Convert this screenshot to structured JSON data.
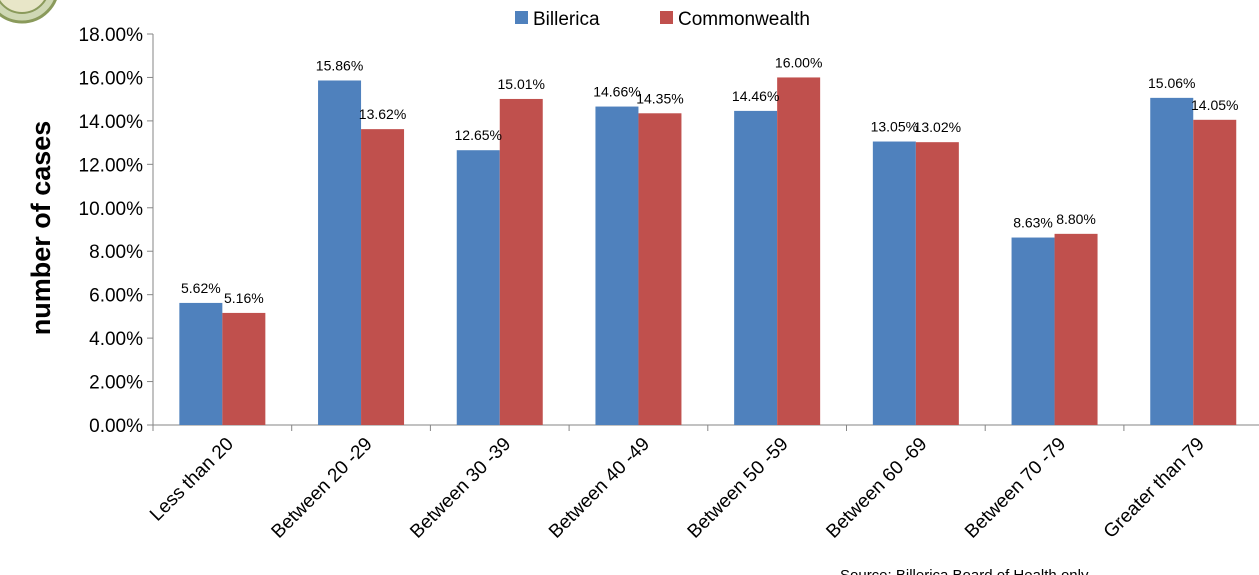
{
  "chart_data": {
    "type": "bar",
    "ylabel": "number of cases",
    "xlabel": "",
    "ylim": [
      0,
      18
    ],
    "y_ticks": [
      "0.00%",
      "2.00%",
      "4.00%",
      "6.00%",
      "8.00%",
      "10.00%",
      "12.00%",
      "14.00%",
      "16.00%",
      "18.00%"
    ],
    "categories": [
      "Less than 20",
      "Between 20 -29",
      "Between 30 -39",
      "Between 40 -49",
      "Between 50 -59",
      "Between 60 -69",
      "Between 70 -79",
      "Greater than 79"
    ],
    "series": [
      {
        "name": "Billerica",
        "color": "#4F81BD",
        "values": [
          5.62,
          15.86,
          12.65,
          14.66,
          14.46,
          13.05,
          8.63,
          15.06
        ],
        "labels": [
          "5.62%",
          "15.86%",
          "12.65%",
          "14.66%",
          "14.46%",
          "13.05%",
          "8.63%",
          "15.06%"
        ]
      },
      {
        "name": "Commonwealth",
        "color": "#C0504D",
        "values": [
          5.16,
          13.62,
          15.01,
          14.35,
          16.0,
          13.02,
          8.8,
          14.05
        ],
        "labels": [
          "5.16%",
          "13.62%",
          "15.01%",
          "14.35%",
          "16.00%",
          "13.02%",
          "8.80%",
          "14.05%"
        ]
      }
    ],
    "legend_position": "top",
    "grid": false
  },
  "source_note": "Source: Billerica Board of Health only"
}
